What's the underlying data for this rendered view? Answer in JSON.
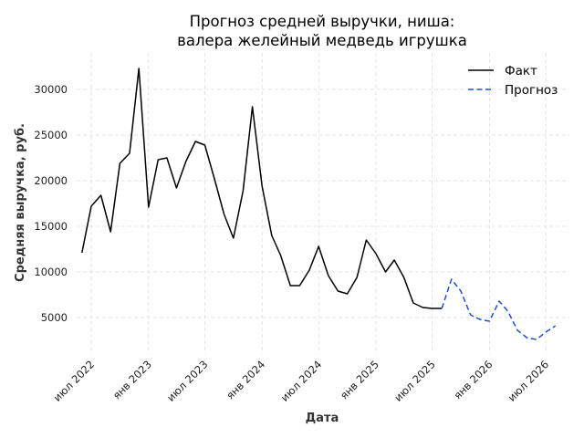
{
  "chart_data": {
    "type": "line",
    "title_line1": "Прогноз средней выручки, ниша:",
    "title_line2": "валера желейный медведь игрушка",
    "xlabel": "Дата",
    "ylabel": "Средняя выручка, руб.",
    "x_ticks": [
      {
        "date": "2022-07",
        "label": "июл 2022"
      },
      {
        "date": "2023-01",
        "label": "янв 2023"
      },
      {
        "date": "2023-07",
        "label": "июл 2023"
      },
      {
        "date": "2024-01",
        "label": "янв 2024"
      },
      {
        "date": "2024-07",
        "label": "июл 2024"
      },
      {
        "date": "2025-01",
        "label": "янв 2025"
      },
      {
        "date": "2025-07",
        "label": "июл 2025"
      },
      {
        "date": "2026-01",
        "label": "янв 2026"
      },
      {
        "date": "2026-07",
        "label": "июл 2026"
      }
    ],
    "y_ticks": [
      5000,
      10000,
      15000,
      20000,
      25000,
      30000
    ],
    "xlim": [
      "2022-05-15",
      "2026-09-15"
    ],
    "ylim": [
      1000,
      34000
    ],
    "grid": true,
    "legend_position": "top-right",
    "series": [
      {
        "name": "Факт",
        "color": "#000000",
        "style": "solid",
        "x": [
          "2022-06",
          "2022-07",
          "2022-08",
          "2022-09",
          "2022-10",
          "2022-11",
          "2022-12",
          "2023-01",
          "2023-02",
          "2023-03",
          "2023-04",
          "2023-05",
          "2023-06",
          "2023-07",
          "2023-08",
          "2023-09",
          "2023-10",
          "2023-11",
          "2023-12",
          "2024-01",
          "2024-02",
          "2024-03",
          "2024-04",
          "2024-05",
          "2024-06",
          "2024-07",
          "2024-08",
          "2024-09",
          "2024-10",
          "2024-11",
          "2024-12",
          "2025-01",
          "2025-02",
          "2025-03",
          "2025-04",
          "2025-05",
          "2025-06",
          "2025-07",
          "2025-08"
        ],
        "values": [
          12100,
          17200,
          18400,
          14400,
          21900,
          23000,
          32300,
          17100,
          22300,
          22500,
          19200,
          22100,
          24300,
          23900,
          20200,
          16300,
          13700,
          18900,
          28100,
          19400,
          14000,
          11800,
          8500,
          8500,
          10200,
          12800,
          9600,
          7900,
          7600,
          9400,
          13500,
          12000,
          10000,
          11300,
          9400,
          6600,
          6100,
          6000,
          6000
        ]
      },
      {
        "name": "Прогноз",
        "color": "#1f4fd0",
        "style": "dashed",
        "x": [
          "2025-08",
          "2025-09",
          "2025-10",
          "2025-11",
          "2025-12",
          "2026-01",
          "2026-02",
          "2026-03",
          "2026-04",
          "2026-05",
          "2026-06",
          "2026-07",
          "2026-08"
        ],
        "values": [
          6000,
          9200,
          7900,
          5300,
          4800,
          4600,
          6800,
          5700,
          3600,
          2800,
          2600,
          3400,
          4100
        ]
      }
    ]
  }
}
